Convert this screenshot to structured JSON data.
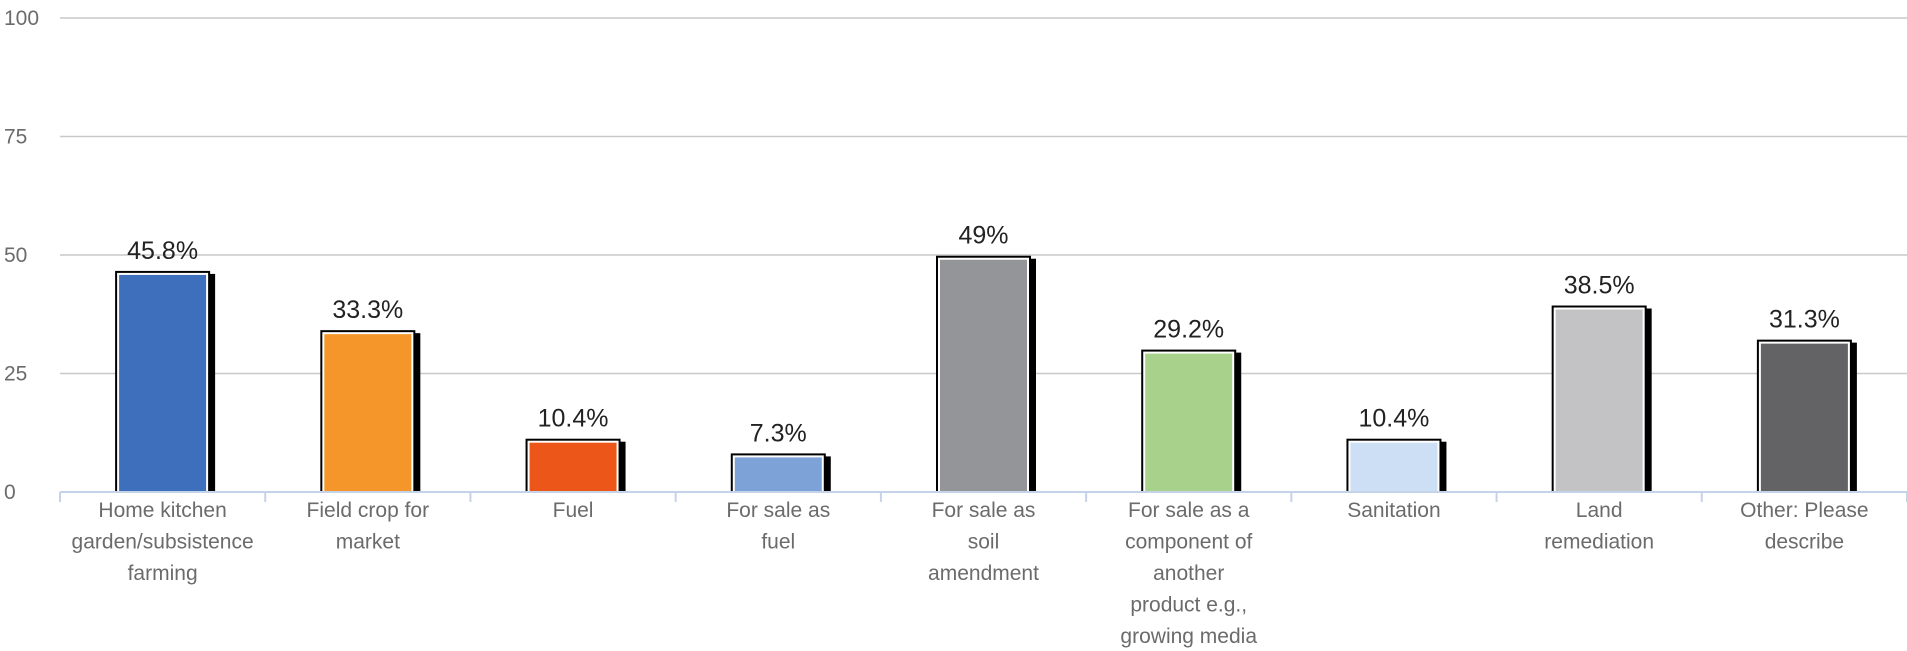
{
  "chart_data": {
    "type": "bar",
    "title": "",
    "xlabel": "",
    "ylabel": "",
    "ylim": [
      0,
      100
    ],
    "yticks": [
      0,
      25,
      50,
      75,
      100
    ],
    "grid": true,
    "legend": "none",
    "categories": [
      [
        "Home kitchen",
        "garden/subsistence",
        "farming"
      ],
      [
        "Field crop for",
        "market"
      ],
      [
        "Fuel"
      ],
      [
        "For sale as",
        "fuel"
      ],
      [
        "For sale as",
        "soil",
        "amendment"
      ],
      [
        "For sale as a",
        "component of",
        "another",
        "product e.g.,",
        "growing media"
      ],
      [
        "Sanitation"
      ],
      [
        "Land",
        "remediation"
      ],
      [
        "Other: Please",
        "describe"
      ]
    ],
    "values": [
      45.8,
      33.3,
      10.4,
      7.3,
      49,
      29.2,
      10.4,
      38.5,
      31.3
    ],
    "data_labels": [
      "45.8%",
      "33.3%",
      "10.4%",
      "7.3%",
      "49%",
      "29.2%",
      "10.4%",
      "38.5%",
      "31.3%"
    ],
    "colors": [
      "#3e6fbd",
      "#f5962a",
      "#ec5619",
      "#7da2d8",
      "#949598",
      "#a8d18c",
      "#cddff4",
      "#c3c3c5",
      "#636365"
    ]
  }
}
